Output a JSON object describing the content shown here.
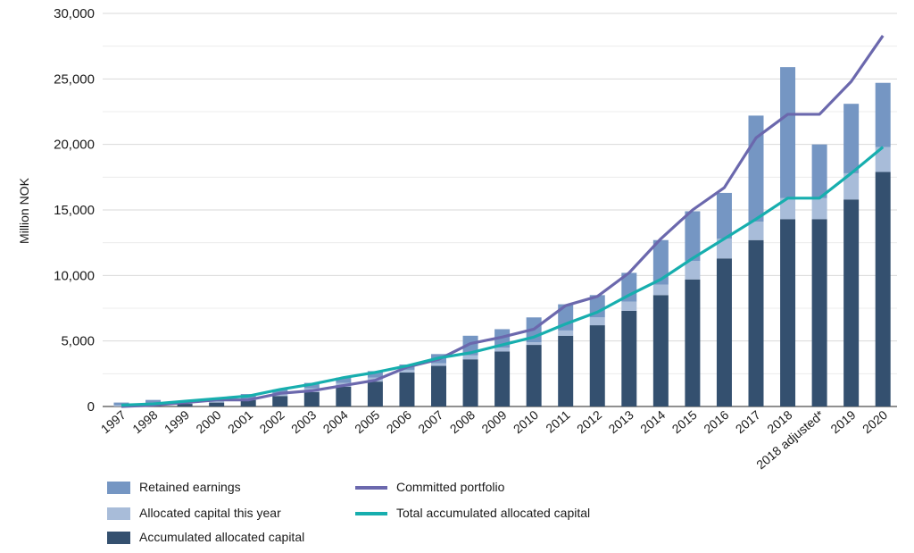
{
  "chart_data": {
    "type": "bar",
    "ylabel": "Million NOK",
    "ylim": [
      0,
      30000
    ],
    "yticks": [
      0,
      5000,
      10000,
      15000,
      20000,
      25000,
      30000
    ],
    "ytick_labels": [
      "0",
      "5,000",
      "10,000",
      "15,000",
      "20,000",
      "25,000",
      "30,000"
    ],
    "grid": true,
    "legend_position": "bottom-left",
    "categories": [
      "1997",
      "1998",
      "1999",
      "2000",
      "2001",
      "2002",
      "2003",
      "2004",
      "2005",
      "2006",
      "2007",
      "2008",
      "2009",
      "2010",
      "2011",
      "2012",
      "2013",
      "2014",
      "2015",
      "2016",
      "2017",
      "2018",
      "2018 adjusted*",
      "2019",
      "2020"
    ],
    "stacked_series": [
      {
        "name": "Accumulated allocated capital",
        "color": "#34506f",
        "values": [
          0,
          100,
          200,
          300,
          500,
          800,
          1100,
          1500,
          1900,
          2600,
          3100,
          3600,
          4200,
          4700,
          5400,
          6200,
          7300,
          8500,
          9700,
          11300,
          12700,
          14300,
          14300,
          15800,
          17900
        ]
      },
      {
        "name": "Allocated capital this year",
        "color": "#a8bcd9",
        "values": [
          100,
          100,
          100,
          100,
          100,
          200,
          300,
          300,
          300,
          200,
          200,
          300,
          300,
          200,
          400,
          600,
          700,
          800,
          1400,
          1500,
          1400,
          1600,
          1600,
          2000,
          1900
        ]
      },
      {
        "name": "Retained earnings",
        "color": "#7596c3",
        "values": [
          200,
          300,
          100,
          150,
          350,
          300,
          400,
          400,
          500,
          400,
          700,
          1500,
          1400,
          1900,
          2000,
          1700,
          2200,
          3400,
          3800,
          3500,
          8100,
          10000,
          4100,
          5300,
          4900
        ]
      }
    ],
    "line_series": [
      {
        "name": "Committed portfolio",
        "color": "#6b68ad",
        "values": [
          0,
          100,
          300,
          500,
          500,
          1000,
          1200,
          1600,
          2000,
          3000,
          3600,
          4800,
          5300,
          5900,
          7700,
          8400,
          10200,
          12800,
          15000,
          16700,
          20500,
          22300,
          22300,
          24800,
          28300
        ]
      },
      {
        "name": "Total accumulated allocated capital",
        "color": "#17aeae",
        "values": [
          100,
          200,
          400,
          600,
          800,
          1300,
          1700,
          2200,
          2600,
          3100,
          3700,
          4100,
          4700,
          5300,
          6300,
          7200,
          8500,
          9700,
          11300,
          12800,
          14300,
          15900,
          15900,
          17800,
          19800
        ]
      }
    ]
  },
  "legend": {
    "retained": "Retained earnings",
    "allocated_year": "Allocated capital this year",
    "accumulated": "Accumulated allocated capital",
    "committed": "Committed portfolio",
    "total": "Total accumulated allocated capital"
  },
  "colors": {
    "retained": "#7596c3",
    "allocated_year": "#a8bcd9",
    "accumulated": "#34506f",
    "committed": "#6b68ad",
    "total": "#17aeae",
    "grid": "#d9d9d9",
    "axis": "#4d4d4d"
  }
}
